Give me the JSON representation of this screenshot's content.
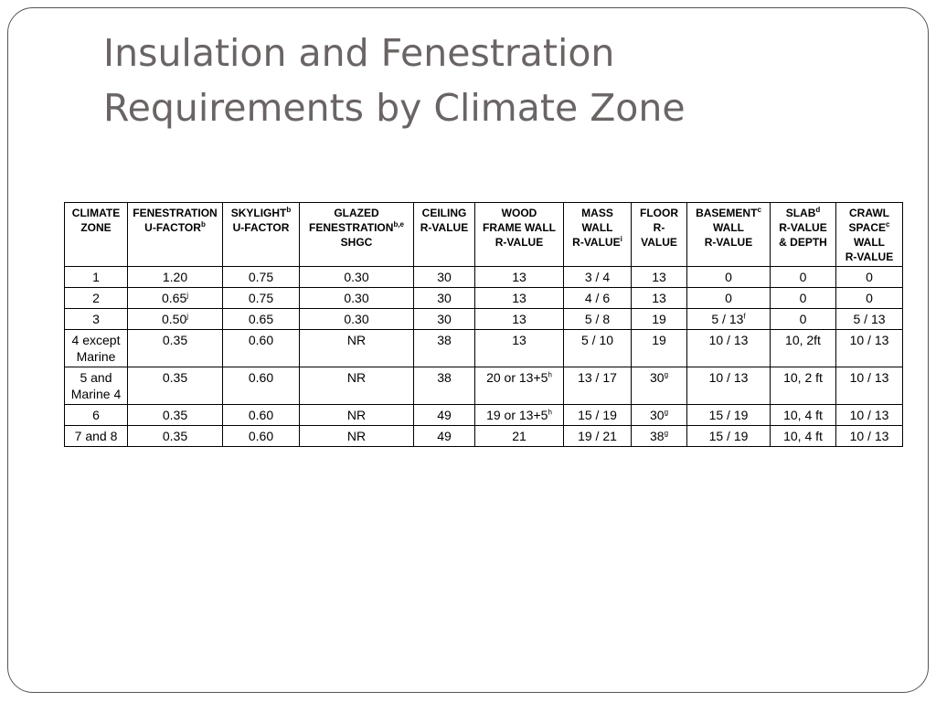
{
  "title": {
    "line1": "Insulation and Fenestration",
    "line2": "Requirements by Climate Zone"
  },
  "table": {
    "headers": [
      {
        "lines": [
          "CLIMATE",
          "ZONE"
        ],
        "sup": ""
      },
      {
        "lines": [
          "FENESTRATION",
          "U-FACTOR"
        ],
        "sup": "b"
      },
      {
        "lines": [
          "SKYLIGHT",
          "U-FACTOR"
        ],
        "sup": "b"
      },
      {
        "lines": [
          "GLAZED",
          "FENESTRATION",
          "SHGC"
        ],
        "sup": "b,e"
      },
      {
        "lines": [
          "CEILING",
          "R-VALUE"
        ],
        "sup": ""
      },
      {
        "lines": [
          "WOOD",
          "FRAME WALL",
          "R-VALUE"
        ],
        "sup": ""
      },
      {
        "lines": [
          "MASS",
          "WALL",
          "R-VALUE"
        ],
        "sup": "i"
      },
      {
        "lines": [
          "FLOOR",
          "R-",
          "VALUE"
        ],
        "sup": ""
      },
      {
        "lines": [
          "BASEMENT",
          "WALL",
          "R-VALUE"
        ],
        "sup": "c"
      },
      {
        "lines": [
          "SLAB",
          "R-VALUE",
          "& DEPTH"
        ],
        "sup": "d"
      },
      {
        "lines": [
          "CRAWL",
          "SPACE",
          "WALL",
          "R-VALUE"
        ],
        "sup": "c"
      }
    ],
    "rows": [
      [
        {
          "t": "1"
        },
        {
          "t": "1.20"
        },
        {
          "t": "0.75"
        },
        {
          "t": "0.30"
        },
        {
          "t": "30"
        },
        {
          "t": "13"
        },
        {
          "t": "3 / 4"
        },
        {
          "t": "13"
        },
        {
          "t": "0"
        },
        {
          "t": "0"
        },
        {
          "t": "0"
        }
      ],
      [
        {
          "t": "2"
        },
        {
          "t": "0.65",
          "s": "j"
        },
        {
          "t": "0.75"
        },
        {
          "t": "0.30"
        },
        {
          "t": "30"
        },
        {
          "t": "13"
        },
        {
          "t": "4 / 6"
        },
        {
          "t": "13"
        },
        {
          "t": "0"
        },
        {
          "t": "0"
        },
        {
          "t": "0"
        }
      ],
      [
        {
          "t": "3"
        },
        {
          "t": "0.50",
          "s": "j"
        },
        {
          "t": "0.65"
        },
        {
          "t": "0.30"
        },
        {
          "t": "30"
        },
        {
          "t": "13"
        },
        {
          "t": "5 / 8"
        },
        {
          "t": "19"
        },
        {
          "t": "5 / 13",
          "s": "f"
        },
        {
          "t": "0"
        },
        {
          "t": "5 / 13"
        }
      ],
      [
        {
          "t": "4 except Marine"
        },
        {
          "t": "0.35"
        },
        {
          "t": "0.60"
        },
        {
          "t": "NR"
        },
        {
          "t": "38"
        },
        {
          "t": "13"
        },
        {
          "t": "5 / 10"
        },
        {
          "t": "19"
        },
        {
          "t": "10 / 13"
        },
        {
          "t": "10, 2ft"
        },
        {
          "t": "10 / 13"
        }
      ],
      [
        {
          "t": "5 and Marine 4"
        },
        {
          "t": "0.35"
        },
        {
          "t": "0.60"
        },
        {
          "t": "NR"
        },
        {
          "t": "38"
        },
        {
          "t": "20 or 13+5",
          "s": "h"
        },
        {
          "t": "13 / 17"
        },
        {
          "t": "30",
          "s": "g"
        },
        {
          "t": "10 / 13"
        },
        {
          "t": "10, 2 ft"
        },
        {
          "t": "10 / 13"
        }
      ],
      [
        {
          "t": "6"
        },
        {
          "t": "0.35"
        },
        {
          "t": "0.60"
        },
        {
          "t": "NR"
        },
        {
          "t": "49"
        },
        {
          "t": "19 or 13+5",
          "s": "h"
        },
        {
          "t": "15 / 19"
        },
        {
          "t": "30",
          "s": "g"
        },
        {
          "t": "15 / 19"
        },
        {
          "t": "10, 4 ft"
        },
        {
          "t": "10 / 13"
        }
      ],
      [
        {
          "t": "7 and 8"
        },
        {
          "t": "0.35"
        },
        {
          "t": "0.60"
        },
        {
          "t": "NR"
        },
        {
          "t": "49"
        },
        {
          "t": "21"
        },
        {
          "t": "19 / 21"
        },
        {
          "t": "38",
          "s": "g"
        },
        {
          "t": "15 / 19"
        },
        {
          "t": "10, 4 ft"
        },
        {
          "t": "10 / 13"
        }
      ]
    ]
  }
}
